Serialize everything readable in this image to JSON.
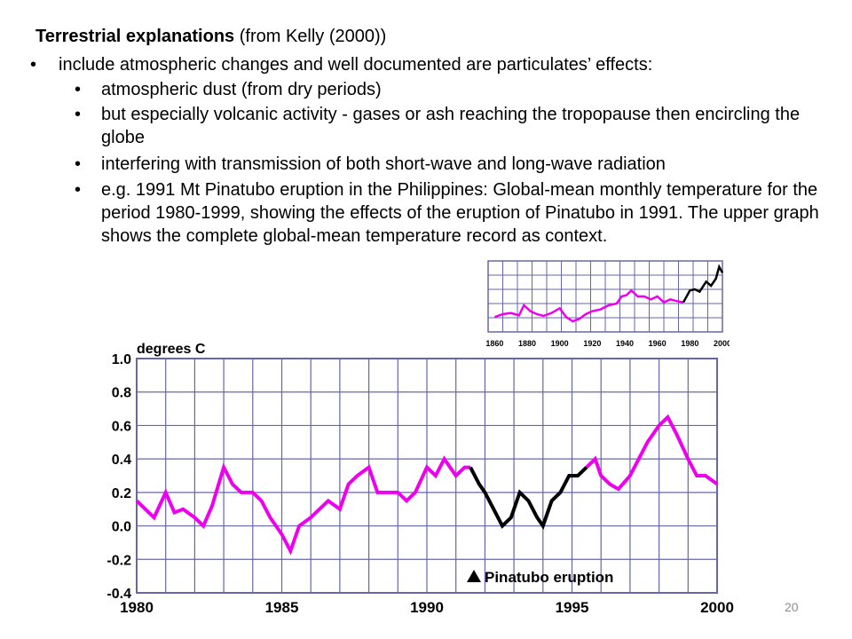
{
  "slide": {
    "heading_bold": "Terrestrial explanations",
    "heading_rest": " (from Kelly (2000))",
    "bullets": [
      {
        "dot": "•",
        "text": "include atmospheric changes and well documented are particulates’ effects:"
      },
      {
        "dot": "•",
        "text": "atmospheric dust (from dry periods)"
      },
      {
        "dot": "•",
        "text": "but especially volcanic activity -  gases or ash reaching the tropopause then encircling the globe"
      },
      {
        "dot": "•",
        "text": "interfering with transmission of both short-wave and long-wave radiation"
      },
      {
        "dot": "•",
        "text": "e.g.  1991 Mt Pinatubo eruption in the Philippines: Global-mean monthly temperature for the period 1980-1999, showing the effects of the eruption of Pinatubo in 1991. The upper graph shows the complete global-mean temperature record as context."
      }
    ],
    "page_number": "20"
  },
  "colors": {
    "magenta": "#ee00ee",
    "black": "#000000",
    "grid": "#6666aa"
  },
  "chart_data": [
    {
      "type": "line",
      "x_ticks": [
        "1860",
        "1880",
        "1900",
        "1920",
        "1940",
        "1960",
        "1980",
        "2000"
      ],
      "xlim": [
        1856,
        2000
      ],
      "ylim": [
        -0.6,
        0.6
      ],
      "grid": true,
      "series": [
        {
          "color": "magenta",
          "x": [
            1860,
            1865,
            1870,
            1875,
            1878,
            1882,
            1886,
            1890,
            1895,
            1900,
            1904,
            1908,
            1912,
            1916,
            1920,
            1925,
            1930,
            1935,
            1938,
            1941,
            1944,
            1948,
            1952,
            1956,
            1960,
            1964,
            1968,
            1972,
            1976
          ],
          "values": [
            -0.35,
            -0.3,
            -0.28,
            -0.32,
            -0.15,
            -0.25,
            -0.3,
            -0.33,
            -0.28,
            -0.2,
            -0.35,
            -0.42,
            -0.38,
            -0.3,
            -0.25,
            -0.22,
            -0.15,
            -0.12,
            0.0,
            0.02,
            0.1,
            0.0,
            0.0,
            -0.05,
            0.0,
            -0.1,
            -0.05,
            -0.08,
            -0.1
          ]
        },
        {
          "color": "black",
          "x": [
            1976,
            1980,
            1983,
            1986,
            1990,
            1993,
            1996,
            1998,
            2000
          ],
          "values": [
            -0.1,
            0.1,
            0.12,
            0.08,
            0.25,
            0.18,
            0.3,
            0.5,
            0.4
          ]
        }
      ]
    },
    {
      "type": "line",
      "ylabel": "degrees C",
      "x_ticks": [
        "1980",
        "1985",
        "1990",
        "1995",
        "2000"
      ],
      "y_ticks": [
        "1.0",
        "0.8",
        "0.6",
        "0.4",
        "0.2",
        "0.0",
        "-0.2",
        "-0.4"
      ],
      "xlim": [
        1980,
        2000
      ],
      "ylim": [
        -0.4,
        1.0
      ],
      "grid": true,
      "annotation": "Pinatubo eruption",
      "series": [
        {
          "color": "magenta",
          "x": [
            1980.0,
            1980.3,
            1980.6,
            1981.0,
            1981.3,
            1981.6,
            1982.0,
            1982.3,
            1982.6,
            1983.0,
            1983.3,
            1983.6,
            1984.0,
            1984.3,
            1984.6,
            1985.0,
            1985.3,
            1985.6,
            1986.0,
            1986.3,
            1986.6,
            1987.0,
            1987.3,
            1987.6,
            1988.0,
            1988.3,
            1988.6,
            1989.0,
            1989.3,
            1989.6,
            1990.0,
            1990.3,
            1990.6,
            1991.0,
            1991.3,
            1991.5
          ],
          "values": [
            0.15,
            0.1,
            0.05,
            0.2,
            0.08,
            0.1,
            0.05,
            0.0,
            0.12,
            0.35,
            0.25,
            0.2,
            0.2,
            0.15,
            0.05,
            -0.05,
            -0.15,
            0.0,
            0.05,
            0.1,
            0.15,
            0.1,
            0.25,
            0.3,
            0.35,
            0.2,
            0.2,
            0.2,
            0.15,
            0.2,
            0.35,
            0.3,
            0.4,
            0.3,
            0.35,
            0.35
          ]
        },
        {
          "color": "black",
          "x": [
            1991.5,
            1991.8,
            1992.0,
            1992.3,
            1992.6,
            1992.9,
            1993.2,
            1993.5,
            1993.8,
            1994.0,
            1994.3,
            1994.6,
            1994.9,
            1995.2,
            1995.5
          ],
          "values": [
            0.35,
            0.25,
            0.2,
            0.1,
            0.0,
            0.05,
            0.2,
            0.15,
            0.05,
            0.0,
            0.15,
            0.2,
            0.3,
            0.3,
            0.35
          ]
        },
        {
          "color": "magenta",
          "x": [
            1995.5,
            1995.8,
            1996.0,
            1996.3,
            1996.6,
            1997.0,
            1997.3,
            1997.6,
            1998.0,
            1998.3,
            1998.6,
            1999.0,
            1999.3,
            1999.6,
            2000.0
          ],
          "values": [
            0.35,
            0.4,
            0.3,
            0.25,
            0.22,
            0.3,
            0.4,
            0.5,
            0.6,
            0.65,
            0.55,
            0.4,
            0.3,
            0.3,
            0.25
          ]
        }
      ]
    }
  ]
}
